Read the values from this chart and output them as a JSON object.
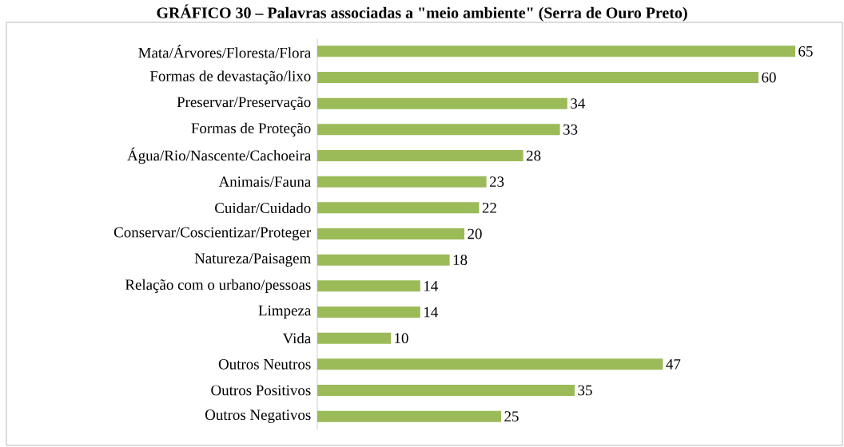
{
  "chart_data": {
    "type": "bar",
    "orientation": "horizontal",
    "title": "GRÁFICO 30 – Palavras associadas a \"meio ambiente\" (Serra de Ouro Preto)",
    "categories": [
      "Mata/Árvores/Floresta/Flora",
      "Formas de devastação/lixo",
      "Preservar/Preservação",
      "Formas de Proteção",
      "Água/Rio/Nascente/Cachoeira",
      "Animais/Fauna",
      "Cuidar/Cuidado",
      "Conservar/Coscientizar/Proteger",
      "Natureza/Paisagem",
      "Relação com o urbano/pessoas",
      "Limpeza",
      "Vida",
      "Outros Neutros",
      "Outros Positivos",
      "Outros Negativos"
    ],
    "values": [
      65,
      60,
      34,
      33,
      28,
      23,
      22,
      20,
      18,
      14,
      14,
      10,
      47,
      35,
      25
    ],
    "color": "#9bbb59",
    "data_labels": true
  }
}
